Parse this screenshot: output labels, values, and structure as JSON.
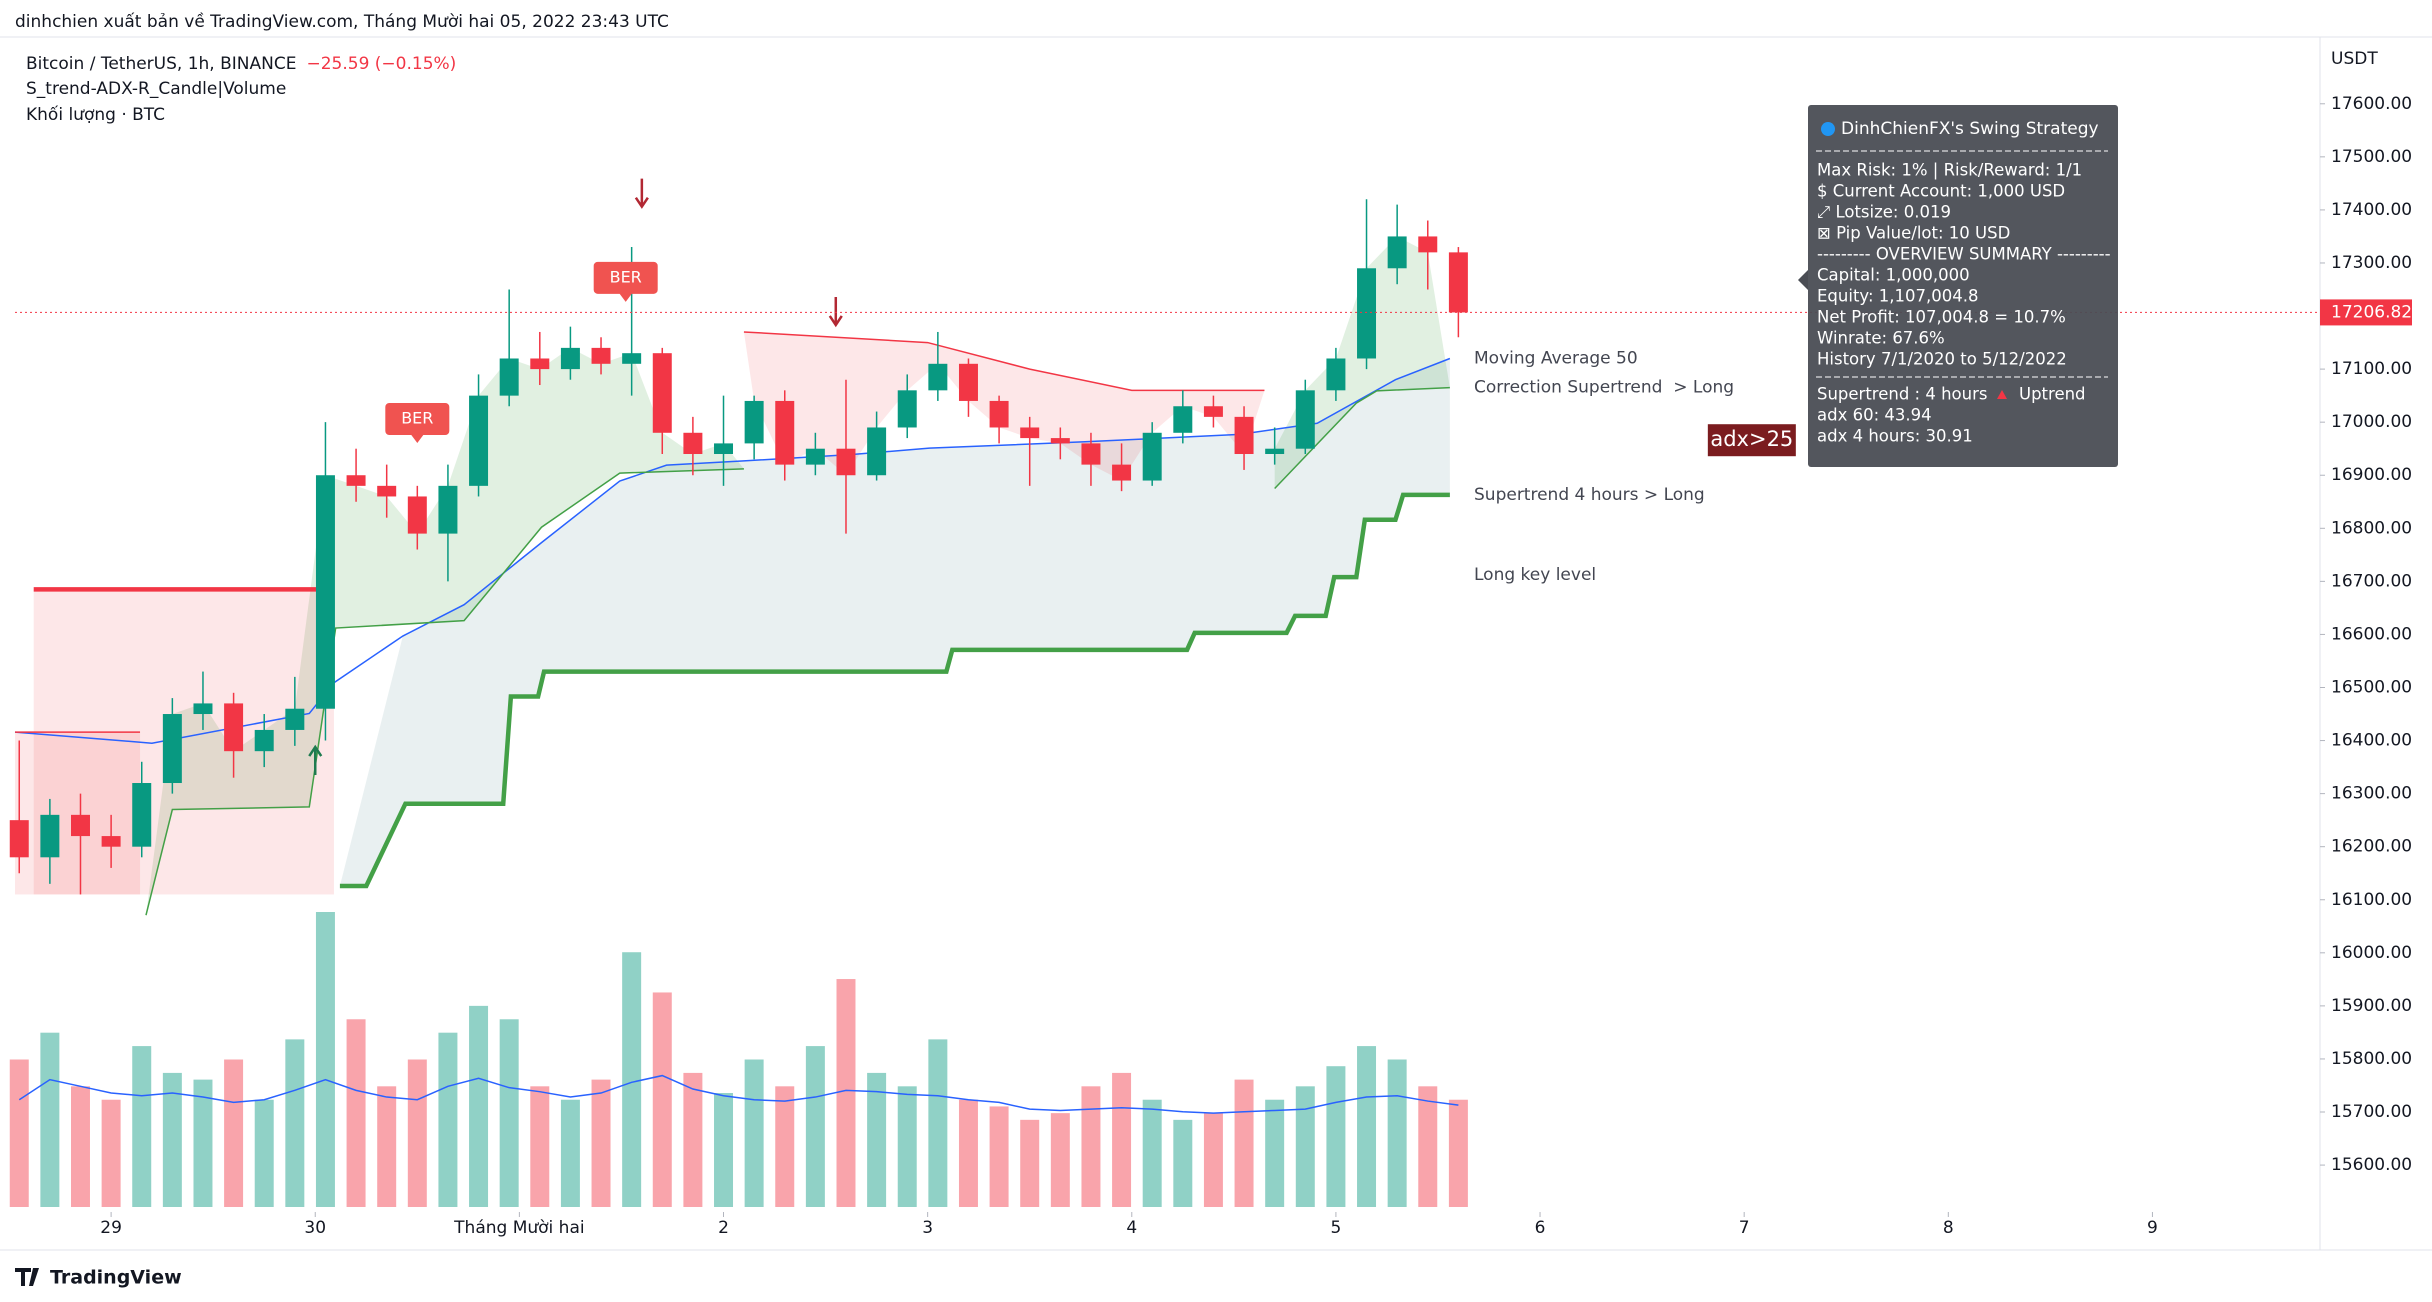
{
  "header": {
    "attribution": "dinhchien xuất bản về TradingView.com, Tháng Mười hai 05, 2022 23:43 UTC"
  },
  "chart_data": {
    "type": "candlestick",
    "title": "Bitcoin / TetherUS, 1h, BINANCE",
    "change_label": "−25.59 (−0.15%)",
    "indicator_labels": [
      "S_trend-ADX-R_Candle|Volume",
      "Khối lượng · BTC"
    ],
    "y_axis_label": "USDT",
    "xlim": [
      -11.3,
      259.7
    ],
    "xticks": [
      {
        "value": 0,
        "label": "29"
      },
      {
        "value": 24,
        "label": "30"
      },
      {
        "value": 48,
        "label": "Tháng Mười hai"
      },
      {
        "value": 72,
        "label": "2"
      },
      {
        "value": 96,
        "label": "3"
      },
      {
        "value": 120,
        "label": "4"
      },
      {
        "value": 144,
        "label": "5"
      },
      {
        "value": 168,
        "label": "6"
      },
      {
        "value": 192,
        "label": "7"
      },
      {
        "value": 216,
        "label": "8"
      },
      {
        "value": 240,
        "label": "9"
      }
    ],
    "ylim": [
      15521,
      17707
    ],
    "yticks": [
      {
        "value": 15600,
        "label": "15600.00"
      },
      {
        "value": 15700,
        "label": "15700.00"
      },
      {
        "value": 15800,
        "label": "15800.00"
      },
      {
        "value": 15900,
        "label": "15900.00"
      },
      {
        "value": 16000,
        "label": "16000.00"
      },
      {
        "value": 16100,
        "label": "16100.00"
      },
      {
        "value": 16200,
        "label": "16200.00"
      },
      {
        "value": 16300,
        "label": "16300.00"
      },
      {
        "value": 16400,
        "label": "16400.00"
      },
      {
        "value": 16500,
        "label": "16500.00"
      },
      {
        "value": 16600,
        "label": "16600.00"
      },
      {
        "value": 16700,
        "label": "16700.00"
      },
      {
        "value": 16800,
        "label": "16800.00"
      },
      {
        "value": 16900,
        "label": "16900.00"
      },
      {
        "value": 17000,
        "label": "17000.00"
      },
      {
        "value": 17100,
        "label": "17100.00"
      },
      {
        "value": 17200,
        "label": "17200.00"
      },
      {
        "value": 17300,
        "label": "17300.00"
      },
      {
        "value": 17400,
        "label": "17400.00"
      },
      {
        "value": 17500,
        "label": "17500.00"
      },
      {
        "value": 17600,
        "label": "17600.00"
      }
    ],
    "grid": false,
    "up_color": "#089981",
    "down_color": "#f23645",
    "x": [
      -10.8,
      -7.2,
      -3.6,
      0,
      3.6,
      7.2,
      10.8,
      14.4,
      18,
      21.6,
      25.2,
      28.8,
      32.4,
      36,
      39.6,
      43.2,
      46.8,
      50.4,
      54,
      57.6,
      61.2,
      64.8,
      68.4,
      72,
      75.6,
      79.2,
      82.8,
      86.4,
      90,
      93.6,
      97.2,
      100.8,
      104.4,
      108,
      111.6,
      115.2,
      118.8,
      122.4,
      126,
      129.6,
      133.2,
      136.8,
      140.4,
      144,
      147.6,
      151.2,
      154.8,
      158.4
    ],
    "open": [
      16250,
      16180,
      16260,
      16220,
      16200,
      16320,
      16450,
      16470,
      16380,
      16420,
      16460,
      16900,
      16880,
      16860,
      16790,
      16880,
      17050,
      17120,
      17100,
      17140,
      17110,
      17130,
      16980,
      16940,
      16960,
      17040,
      16920,
      16950,
      16900,
      16990,
      17060,
      17110,
      17040,
      16990,
      16970,
      16960,
      16920,
      16890,
      16980,
      17030,
      17010,
      16940,
      16950,
      17060,
      17120,
      17290,
      17350,
      17320
    ],
    "high": [
      16400,
      16290,
      16300,
      16260,
      16360,
      16480,
      16530,
      16490,
      16450,
      16520,
      17000,
      16950,
      16920,
      16880,
      16920,
      17090,
      17250,
      17170,
      17180,
      17160,
      17330,
      17140,
      17010,
      17050,
      17050,
      17060,
      16980,
      17080,
      17020,
      17090,
      17170,
      17120,
      17050,
      17010,
      16990,
      16980,
      16960,
      17000,
      17060,
      17050,
      17030,
      16990,
      17080,
      17140,
      17420,
      17410,
      17380,
      17330
    ],
    "low": [
      16150,
      16130,
      16110,
      16160,
      16180,
      16300,
      16420,
      16330,
      16350,
      16390,
      16400,
      16850,
      16820,
      16760,
      16700,
      16860,
      17030,
      17070,
      17080,
      17090,
      17050,
      16940,
      16900,
      16880,
      16930,
      16890,
      16900,
      16790,
      16890,
      16970,
      17040,
      17010,
      16960,
      16880,
      16930,
      16880,
      16870,
      16880,
      16960,
      16990,
      16910,
      16920,
      16940,
      17040,
      17100,
      17260,
      17250,
      17160
    ],
    "close": [
      16180,
      16260,
      16220,
      16200,
      16320,
      16450,
      16470,
      16380,
      16420,
      16460,
      16900,
      16880,
      16860,
      16790,
      16880,
      17050,
      17120,
      17100,
      17140,
      17110,
      17130,
      16980,
      16940,
      16960,
      17040,
      16920,
      16950,
      16900,
      16990,
      17060,
      17110,
      17040,
      16990,
      16970,
      16960,
      16920,
      16890,
      16980,
      17030,
      17010,
      16940,
      16950,
      17060,
      17120,
      17290,
      17350,
      17320,
      17206.82
    ],
    "last_price": {
      "value": 17206.82,
      "label": "17206.82"
    },
    "volume": {
      "values": [
        11000,
        13000,
        9000,
        8000,
        12000,
        10000,
        9500,
        11000,
        8000,
        12500,
        22000,
        14000,
        9000,
        11000,
        13000,
        15000,
        14000,
        9000,
        8000,
        9500,
        19000,
        16000,
        10000,
        8500,
        11000,
        9000,
        12000,
        17000,
        10000,
        9000,
        12500,
        8000,
        7500,
        6500,
        7000,
        9000,
        10000,
        8000,
        6500,
        7000,
        9500,
        8000,
        9000,
        10500,
        12000,
        11000,
        9000,
        8000
      ],
      "ma": [
        8000,
        9500,
        9000,
        8500,
        8300,
        8500,
        8200,
        7800,
        8000,
        8700,
        9500,
        8700,
        8200,
        8000,
        9000,
        9600,
        8900,
        8600,
        8200,
        8500,
        9300,
        9800,
        8800,
        8300,
        8000,
        7900,
        8200,
        8700,
        8600,
        8400,
        8300,
        8000,
        7800,
        7300,
        7200,
        7300,
        7400,
        7300,
        7100,
        7000,
        7100,
        7200,
        7300,
        7800,
        8200,
        8300,
        7900,
        7600
      ],
      "ma_color": "#2962ff"
    },
    "overlays": [
      {
        "name": "Moving Average 50",
        "color": "#2962ff",
        "x": [
          -11.3,
          4.8,
          23.3,
          26.2,
          34.3,
          41.5,
          50.6,
          59.8,
          65.3,
          74.4,
          87.1,
          96.2,
          114.5,
          132.7,
          141.8,
          151,
          157.4
        ],
        "values": [
          16416,
          16395,
          16451,
          16509,
          16597,
          16656,
          16773,
          16889,
          16919,
          16927,
          16939,
          16951,
          16963,
          16977,
          16998,
          17080,
          17120
        ]
      },
      {
        "name": "Correction Supertrend  > Long",
        "color": "#43a047",
        "x": [
          4.1,
          7.2,
          23.3,
          26.4,
          41.5,
          50.6,
          59.8,
          74.4,
          null,
          136.8,
          146.4,
          148.8,
          157.4
        ],
        "values": [
          16071,
          16270,
          16275,
          16612,
          16626,
          16802,
          16904,
          16912,
          null,
          16875,
          17036,
          17059,
          17065
        ]
      },
      {
        "color": "#f23645",
        "x": [
          74.4,
          96,
          108,
          120,
          135.6
        ],
        "values": [
          17170,
          17150,
          17100,
          17060,
          17060
        ]
      },
      {
        "name": "Supertrend 4 hours > Long",
        "color": "#43a047",
        "x": [
          26.9,
          30,
          34.6,
          46.1,
          47,
          50.2,
          50.9,
          98.2,
          98.9,
          126.5,
          127.4,
          138.2,
          139.2,
          142.8,
          143.8,
          146.4,
          147.4,
          151,
          151.9,
          157.4
        ],
        "values": [
          16126,
          16126,
          16281,
          16281,
          16483,
          16483,
          16530,
          16530,
          16571,
          16571,
          16603,
          16603,
          16635,
          16635,
          16708,
          16708,
          16816,
          16816,
          16863,
          16863
        ]
      },
      {
        "name": "Long key level",
        "color": "#f23645",
        "x": [
          -9.1,
          26.2
        ],
        "values": [
          16685,
          16685
        ]
      },
      {
        "color": "#f23645",
        "x": [
          -11.3,
          3.4
        ],
        "values": [
          16416,
          16416
        ]
      }
    ],
    "signals": [
      {
        "x": 62.4,
        "y": 17425,
        "direction": "down"
      },
      {
        "x": 85.2,
        "y": 17202,
        "direction": "down"
      },
      {
        "x": 24,
        "y": 16369,
        "direction": "up"
      }
    ],
    "tags": [
      {
        "text": "BER",
        "x": 60.5,
        "y": 17272
      },
      {
        "text": "BER",
        "x": 36,
        "y": 17006
      }
    ],
    "adx_label": {
      "text": "adx>25",
      "x": 192.9,
      "y": 16966
    }
  },
  "info_panel": {
    "title": "DinhChienFX's Swing Strategy",
    "lines": [
      "Max Risk: 1% | Risk/Reward: 1/1",
      "$ Current Account: 1,000 USD",
      "⤢ Lotsize: 0.019",
      "⊠ Pip Value/lot: 10 USD",
      "--------- OVERVIEW SUMMARY ---------",
      "Capital: 1,000,000",
      "Equity: 1,107,004.8",
      "Net Profit: 107,004.8 = 10.7%",
      "Winrate: 67.6%",
      "History 7/1/2020 to 5/12/2022"
    ],
    "trend_lines": [
      "Supertrend : 4 hours",
      "Uptrend",
      "adx 60: 43.94",
      "adx 4 hours: 30.91"
    ]
  },
  "footer": {
    "brand": "TradingView"
  }
}
